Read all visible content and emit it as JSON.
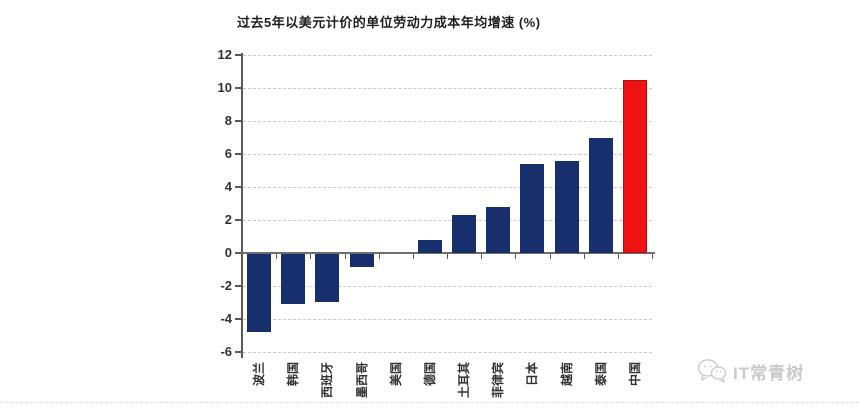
{
  "chart": {
    "title": "过去5年以美元计价的单位劳动力成本年均增速 (%)"
  },
  "chart_data": {
    "type": "bar",
    "title": "过去5年以美元计价的单位劳动力成本年均增速 (%)",
    "categories": [
      "波兰",
      "韩国",
      "西班牙",
      "墨西哥",
      "美国",
      "德国",
      "土耳其",
      "菲律宾",
      "日本",
      "越南",
      "泰国",
      "中国"
    ],
    "values": [
      -4.7,
      -3.0,
      -2.9,
      -0.8,
      0.0,
      0.8,
      2.3,
      2.8,
      5.4,
      5.6,
      7.0,
      10.5
    ],
    "ylim": [
      -6,
      12
    ],
    "yticks": [
      12,
      10,
      8,
      6,
      4,
      2,
      0,
      -2,
      -4,
      -6
    ],
    "grid": "horizontal-dashed",
    "legend": "none",
    "xlabel": "",
    "ylabel": "",
    "colors": {
      "bar_default": "#17306d",
      "bar_highlight": "#ee1212",
      "bar_highlight_border": "#b30d0d",
      "highlight_category": "中国",
      "axis": "#5a5a5a",
      "gridline": "#c9c9c9",
      "tick_label": "#333333"
    }
  },
  "watermark": {
    "icon": "wechat-logo",
    "text": "IT常青树"
  }
}
